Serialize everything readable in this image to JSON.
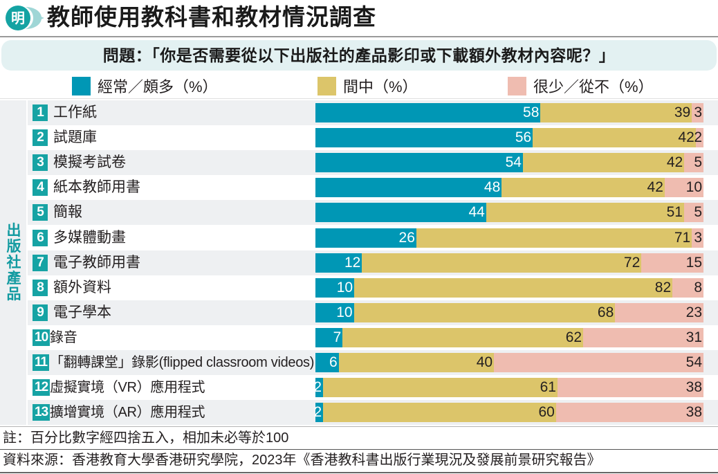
{
  "header": {
    "logo_char": "明",
    "title": "教師使用教科書和教材情況調查"
  },
  "question": "問題：「你是否需要從以下出版社的產品影印或下載額外教材內容呢？」",
  "side_label": "出版社產品",
  "colors": {
    "often": "#0097b5",
    "sometimes": "#dcc56a",
    "rarely": "#efbcb0",
    "accent": "#16a3a4"
  },
  "legend": [
    {
      "label": "經常／頗多（%）",
      "color": "#0097b5"
    },
    {
      "label": "間中（%）",
      "color": "#dcc56a"
    },
    {
      "label": "很少／從不（%）",
      "color": "#efbcb0"
    }
  ],
  "chart_data": {
    "type": "bar",
    "orientation": "horizontal",
    "stacked": true,
    "title": "教師使用教科書和教材情況調查",
    "subtitle": "問題：「你是否需要從以下出版社的產品影印或下載額外教材內容呢？」",
    "ylabel": "出版社產品",
    "xlabel": "",
    "xlim": [
      0,
      100
    ],
    "grid": false,
    "legend_position": "top",
    "categories": [
      {
        "num": "1",
        "label": "工作紙"
      },
      {
        "num": "2",
        "label": "試題庫"
      },
      {
        "num": "3",
        "label": "模擬考試卷"
      },
      {
        "num": "4",
        "label": "紙本教師用書"
      },
      {
        "num": "5",
        "label": "簡報"
      },
      {
        "num": "6",
        "label": "多媒體動畫"
      },
      {
        "num": "7",
        "label": "電子教師用書"
      },
      {
        "num": "8",
        "label": "額外資料"
      },
      {
        "num": "9",
        "label": "電子學本"
      },
      {
        "num": "10",
        "label": "錄音"
      },
      {
        "num": "11",
        "label": "「翻轉課堂」錄影(flipped classroom videos)"
      },
      {
        "num": "12",
        "label": "虛擬實境（VR）應用程式"
      },
      {
        "num": "13",
        "label": "擴增實境（AR）應用程式"
      }
    ],
    "series": [
      {
        "name": "經常／頗多（%）",
        "values": [
          58,
          56,
          54,
          48,
          44,
          26,
          12,
          10,
          10,
          7,
          6,
          2,
          2
        ]
      },
      {
        "name": "間中（%）",
        "values": [
          39,
          42,
          42,
          42,
          51,
          71,
          72,
          82,
          68,
          62,
          40,
          61,
          60
        ]
      },
      {
        "name": "很少／從不（%）",
        "values": [
          3,
          2,
          5,
          10,
          5,
          3,
          15,
          8,
          23,
          31,
          54,
          38,
          38
        ]
      }
    ]
  },
  "footer": {
    "note": "註：百分比數字經四捨五入，相加未必等於100",
    "source": "資料來源：香港教育大學香港研究學院，2023年《香港教科書出版行業現況及發展前景研究報告》"
  }
}
